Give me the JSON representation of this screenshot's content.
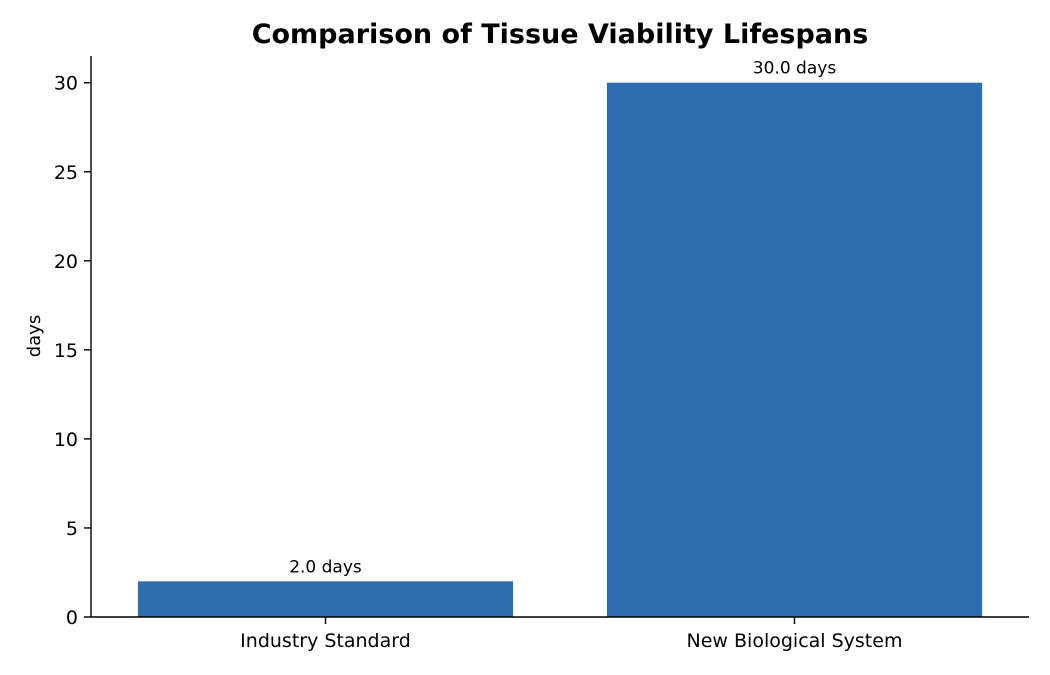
{
  "chart_data": {
    "type": "bar",
    "title": "Comparison of Tissue Viability Lifespans",
    "xlabel": "",
    "ylabel": "days",
    "categories": [
      "Industry Standard",
      "New Biological System"
    ],
    "values": [
      2.0,
      30.0
    ],
    "data_labels": [
      "2.0 days",
      "30.0 days"
    ],
    "ylim": [
      0,
      31.5
    ],
    "yticks": [
      0,
      5,
      10,
      15,
      20,
      25,
      30
    ],
    "bar_color": "#2d6db0",
    "grid": false,
    "legend": "none"
  }
}
